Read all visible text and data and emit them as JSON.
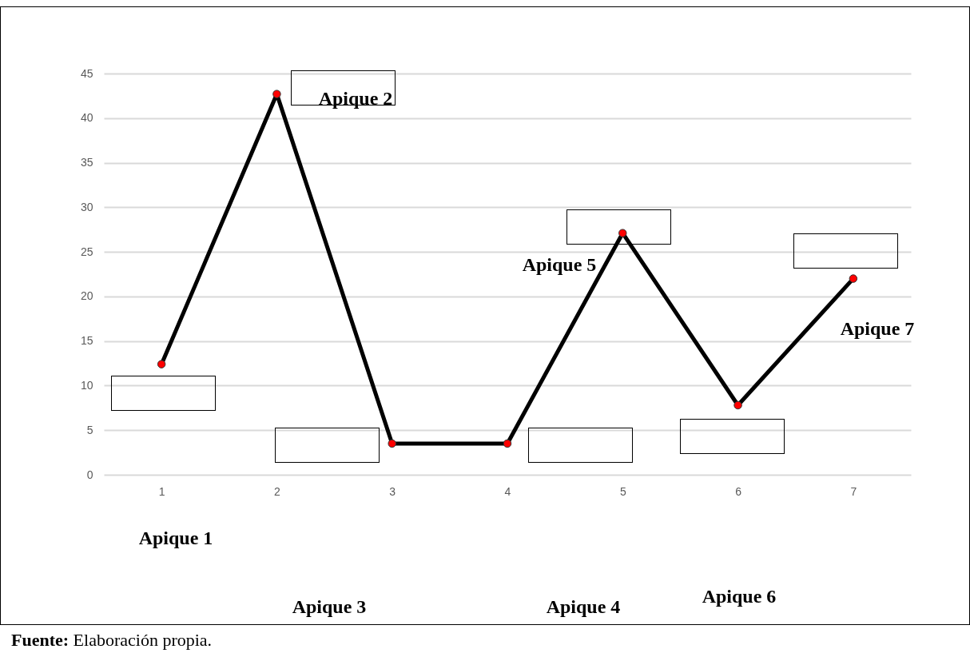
{
  "chart_data": {
    "type": "line",
    "categories": [
      "1",
      "2",
      "3",
      "4",
      "5",
      "6",
      "7"
    ],
    "series": [
      {
        "color": "#000000",
        "values": [
          12.4,
          42.7,
          3.5,
          3.5,
          27.1,
          7.8,
          22.0
        ]
      }
    ],
    "ylim": [
      0,
      45
    ],
    "yticks": [
      0,
      5,
      10,
      15,
      20,
      25,
      30,
      35,
      40,
      45
    ],
    "grid": "y",
    "marker": "circle",
    "line_style": "solid",
    "annotations": [
      "Apique 1",
      "Apique 2",
      "Apique 3",
      "Apique 4",
      "Apique 5",
      "Apique 6",
      "Apique 7",
      "Fuente: Elaboración propia."
    ]
  }
}
